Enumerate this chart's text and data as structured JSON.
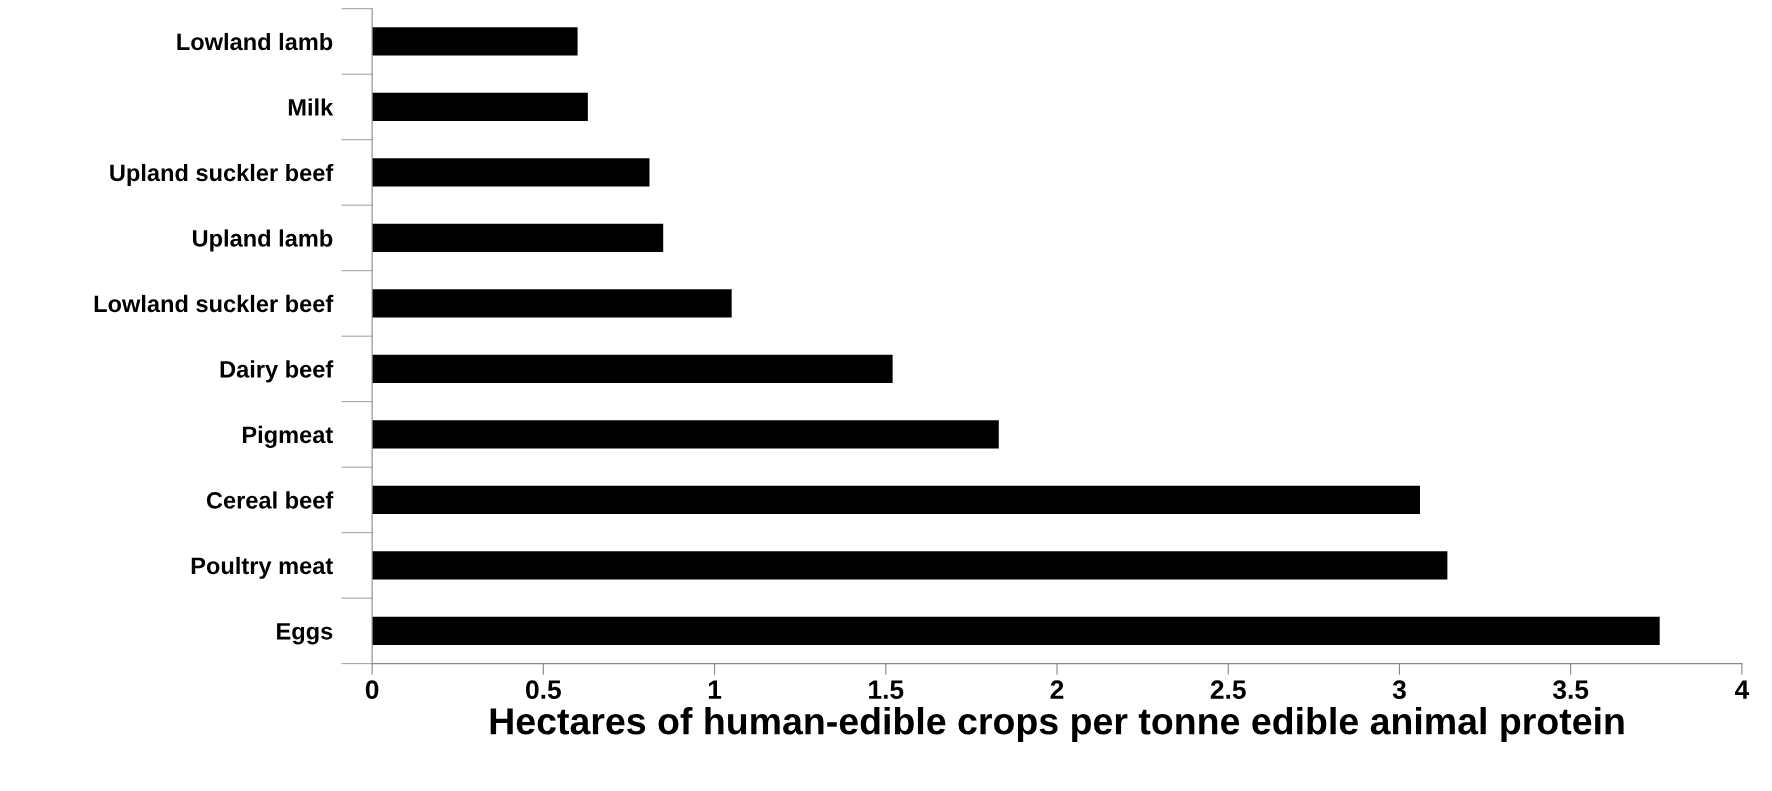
{
  "chart_data": {
    "type": "bar",
    "orientation": "horizontal",
    "xlabel": "Hectares of human-edible crops per tonne edible animal protein",
    "categories": [
      "Lowland lamb",
      "Milk",
      "Upland suckler beef",
      "Upland lamb",
      "Lowland suckler beef",
      "Dairy beef",
      "Pigmeat",
      "Cereal beef",
      "Poultry meat",
      "Eggs"
    ],
    "values": [
      0.6,
      0.63,
      0.81,
      0.85,
      1.05,
      1.52,
      1.83,
      3.06,
      3.14,
      3.76
    ],
    "color": "#000000",
    "xlim": [
      0,
      4
    ],
    "xticks": [
      0,
      0.5,
      1,
      1.5,
      2,
      2.5,
      3,
      3.5,
      4
    ],
    "grid": false,
    "legend": false
  }
}
